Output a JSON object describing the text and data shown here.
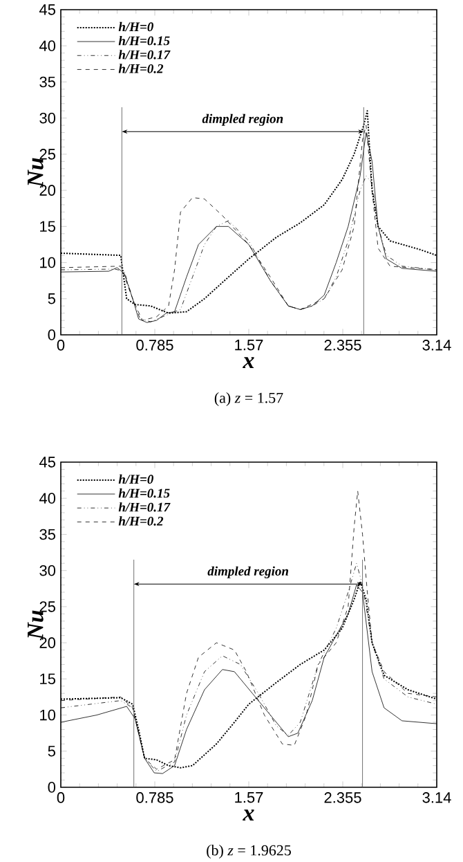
{
  "chart_data": [
    {
      "type": "line",
      "xlabel": "x",
      "ylabel": "Nu",
      "xlim": [
        0,
        3.14
      ],
      "ylim": [
        0,
        45
      ],
      "xticks": [
        0,
        0.785,
        1.57,
        2.355,
        3.14
      ],
      "yticks": [
        0,
        5,
        10,
        15,
        20,
        25,
        30,
        35,
        40,
        45
      ],
      "legend": "top left",
      "grid": false,
      "series": [
        {
          "name": "h/H=0",
          "color": "#000000",
          "line_style": "dotted",
          "x": [
            0,
            0.5,
            0.55,
            0.62,
            0.75,
            0.9,
            1.05,
            1.2,
            1.4,
            1.57,
            1.8,
            2.0,
            2.2,
            2.35,
            2.45,
            2.53,
            2.56,
            2.6,
            2.65,
            2.75,
            3.0,
            3.14
          ],
          "values": [
            11.3,
            11,
            5,
            4.2,
            4,
            3,
            3.2,
            5,
            8,
            10.5,
            13.5,
            15.5,
            18,
            21.5,
            25,
            29,
            31,
            20,
            15,
            13,
            11.8,
            11
          ]
        },
        {
          "name": "h/H=0.15",
          "color": "#000000",
          "line_style": "solid",
          "x": [
            0,
            0.4,
            0.47,
            0.53,
            0.6,
            0.65,
            0.72,
            0.8,
            0.88,
            0.95,
            1.05,
            1.15,
            1.3,
            1.4,
            1.57,
            1.75,
            1.9,
            2.0,
            2.1,
            2.2,
            2.3,
            2.4,
            2.5,
            2.55,
            2.6,
            2.65,
            2.72,
            2.85,
            3.14
          ],
          "values": [
            8.7,
            8.8,
            9.3,
            8.5,
            5,
            2.2,
            1.7,
            2,
            3,
            3.2,
            8,
            12.5,
            15,
            15,
            12.5,
            7.5,
            4,
            3.5,
            4,
            5.5,
            10,
            15,
            22,
            28,
            24,
            15,
            10.5,
            9.2,
            8.8
          ]
        },
        {
          "name": "h/H=0.17",
          "color": "#000000",
          "line_style": "dashdotted",
          "x": [
            0,
            0.45,
            0.53,
            0.6,
            0.66,
            0.75,
            0.85,
            0.95,
            1.0,
            1.1,
            1.2,
            1.3,
            1.4,
            1.57,
            1.75,
            1.9,
            2.0,
            2.1,
            2.2,
            2.3,
            2.4,
            2.5,
            2.55,
            2.6,
            2.65,
            2.72,
            2.85,
            3.14
          ],
          "values": [
            9,
            9.1,
            8.8,
            5,
            2.3,
            1.8,
            2.5,
            3.2,
            3.5,
            8,
            12.5,
            15,
            15.8,
            13,
            7.5,
            4,
            3.5,
            4,
            5,
            8,
            13,
            20,
            22,
            21,
            15,
            11,
            9.5,
            9
          ]
        },
        {
          "name": "h/H=0.2",
          "color": "#000000",
          "line_style": "dashed",
          "x": [
            0,
            0.5,
            0.6,
            0.68,
            0.8,
            0.9,
            0.95,
            1.0,
            1.1,
            1.2,
            1.35,
            1.57,
            1.75,
            1.9,
            2.0,
            2.2,
            2.35,
            2.45,
            2.52,
            2.55,
            2.6,
            2.65,
            2.75,
            3.14
          ],
          "values": [
            9.3,
            9.5,
            5,
            2,
            2.5,
            4,
            9,
            17,
            19,
            18.8,
            16.5,
            12.5,
            8,
            4,
            3.5,
            5,
            9,
            15,
            27,
            29,
            20,
            12,
            9.5,
            9
          ]
        }
      ],
      "ref_lines": [
        {
          "axis": "x",
          "value": 0.51
        },
        {
          "axis": "x",
          "value": 2.53
        }
      ],
      "annotations": [
        "dimpled region",
        "(a)  *z*  =  1.57"
      ]
    },
    {
      "type": "line",
      "xlabel": "x",
      "ylabel": "Nu",
      "xlim": [
        0,
        3.14
      ],
      "ylim": [
        0,
        45
      ],
      "xticks": [
        0,
        0.785,
        1.57,
        2.355,
        3.14
      ],
      "yticks": [
        0,
        5,
        10,
        15,
        20,
        25,
        30,
        35,
        40,
        45
      ],
      "legend": "top left",
      "grid": false,
      "series": [
        {
          "name": "h/H=0",
          "color": "#000000",
          "line_style": "dotted",
          "x": [
            0,
            0.5,
            0.6,
            0.65,
            0.7,
            0.8,
            0.9,
            1.0,
            1.1,
            1.3,
            1.45,
            1.57,
            1.8,
            2.0,
            2.2,
            2.35,
            2.45,
            2.5,
            2.55,
            2.6,
            2.7,
            2.9,
            3.14
          ],
          "values": [
            12.2,
            12.4,
            11.5,
            8,
            4,
            3.8,
            3,
            2.7,
            3,
            6,
            9,
            11.5,
            14.5,
            17,
            19,
            22,
            26,
            28.5,
            26,
            20,
            15.5,
            13.5,
            12.2
          ]
        },
        {
          "name": "h/H=0.15",
          "color": "#000000",
          "line_style": "solid",
          "x": [
            0,
            0.3,
            0.55,
            0.62,
            0.7,
            0.78,
            0.85,
            0.95,
            1.05,
            1.2,
            1.35,
            1.45,
            1.6,
            1.8,
            1.9,
            1.98,
            2.1,
            2.2,
            2.3,
            2.4,
            2.47,
            2.52,
            2.6,
            2.7,
            2.85,
            3.14
          ],
          "values": [
            9,
            10,
            11.2,
            9.5,
            4,
            2,
            1.9,
            3,
            8,
            13.5,
            16.3,
            16,
            13,
            9,
            7,
            7.5,
            12,
            18,
            21,
            24,
            28,
            27,
            16,
            11,
            9.2,
            8.8
          ]
        },
        {
          "name": "h/H=0.17",
          "color": "#000000",
          "line_style": "dashdotted",
          "x": [
            0,
            0.5,
            0.6,
            0.7,
            0.8,
            0.95,
            1.05,
            1.2,
            1.35,
            1.5,
            1.65,
            1.8,
            1.9,
            2.0,
            2.15,
            2.3,
            2.4,
            2.47,
            2.52,
            2.6,
            2.7,
            2.9,
            3.14
          ],
          "values": [
            11,
            12,
            11,
            4,
            2.2,
            3.5,
            10,
            16,
            18.2,
            17,
            13,
            8.5,
            7.2,
            9,
            17,
            22,
            27,
            31,
            28,
            20,
            15,
            12.5,
            11.5
          ]
        },
        {
          "name": "h/H=0.2",
          "color": "#000000",
          "line_style": "dashed",
          "x": [
            0,
            0.5,
            0.6,
            0.7,
            0.8,
            0.95,
            1.05,
            1.15,
            1.3,
            1.45,
            1.55,
            1.7,
            1.85,
            1.95,
            2.05,
            2.15,
            2.3,
            2.4,
            2.45,
            2.48,
            2.52,
            2.56,
            2.6,
            2.7,
            2.9,
            3.14
          ],
          "values": [
            12,
            12.5,
            11,
            4,
            2.5,
            3.8,
            13,
            18,
            20,
            19,
            16,
            10,
            6,
            5.8,
            10,
            17,
            20,
            25,
            36,
            41,
            35,
            27,
            20,
            16,
            13,
            12.5
          ]
        }
      ],
      "ref_lines": [
        {
          "axis": "x",
          "value": 0.61
        },
        {
          "axis": "x",
          "value": 2.52
        }
      ],
      "annotations": [
        "dimpled region",
        "(b)  *z*  =  1.9625"
      ]
    }
  ]
}
